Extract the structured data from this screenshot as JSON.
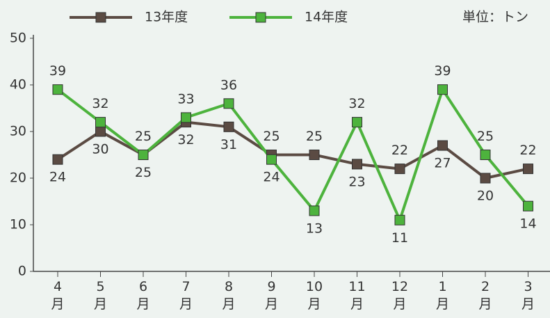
{
  "chart_data": {
    "type": "line",
    "unit_label": "単位：トン",
    "categories": [
      "4\n月",
      "5\n月",
      "6\n月",
      "7\n月",
      "8\n月",
      "9\n月",
      "10\n月",
      "11\n月",
      "12\n月",
      "1\n月",
      "2\n月",
      "3\n月"
    ],
    "series": [
      {
        "name": "13年度",
        "color": "#5b4b43",
        "values": [
          24,
          30,
          25,
          32,
          31,
          25,
          25,
          23,
          22,
          27,
          20,
          22
        ]
      },
      {
        "name": "14年度",
        "color": "#4db33d",
        "values": [
          39,
          32,
          25,
          33,
          36,
          24,
          13,
          32,
          11,
          39,
          25,
          14
        ]
      }
    ],
    "ylim": [
      0,
      50
    ],
    "yticks": [
      0,
      10,
      20,
      30,
      40,
      50
    ],
    "grid": false
  }
}
